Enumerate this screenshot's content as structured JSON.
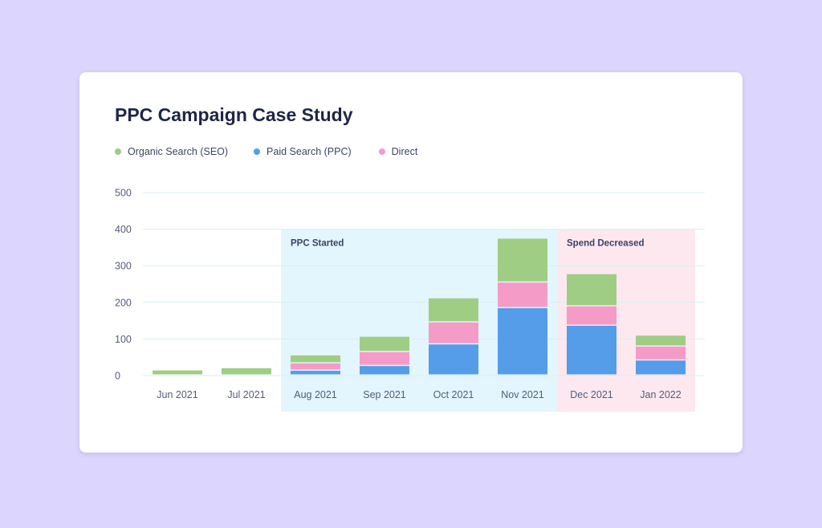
{
  "chart_data": {
    "type": "bar",
    "stacked": true,
    "title": "PPC Campaign Case Study",
    "categories": [
      "Jun 2021",
      "Jul 2021",
      "Aug 2021",
      "Sep 2021",
      "Oct 2021",
      "Nov 2021",
      "Dec 2021",
      "Jan 2022"
    ],
    "series": [
      {
        "name": "Paid Search (PPC)",
        "color": "#559ce9",
        "values": [
          0,
          0,
          13,
          26,
          85,
          184,
          136,
          41
        ]
      },
      {
        "name": "Direct",
        "color": "#f59bc7",
        "values": [
          0,
          0,
          20,
          38,
          60,
          70,
          53,
          38
        ]
      },
      {
        "name": "Organic Search (SEO)",
        "color": "#9fcd84",
        "values": [
          14,
          20,
          22,
          42,
          66,
          120,
          88,
          30
        ]
      }
    ],
    "legend_order": [
      "Organic Search (SEO)",
      "Paid Search (PPC)",
      "Direct"
    ],
    "ylim": [
      0,
      500
    ],
    "yticks": [
      0,
      100,
      200,
      300,
      400,
      500
    ],
    "xlabel": "",
    "ylabel": "",
    "grid": true,
    "legend_position": "top-left",
    "annotations": [
      {
        "label": "PPC Started",
        "from_category": "Aug 2021",
        "to_category": "Nov 2021",
        "color": "#e3f5fd"
      },
      {
        "label": "Spend Decreased",
        "from_category": "Dec 2021",
        "to_category": "Jan 2022",
        "color": "#fde8ef"
      }
    ]
  }
}
